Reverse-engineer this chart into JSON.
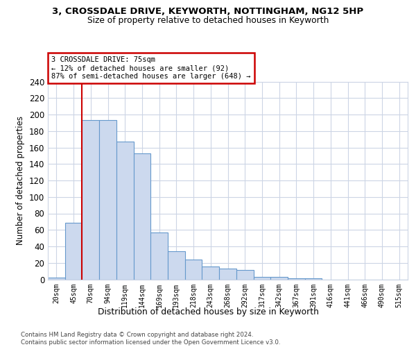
{
  "title1": "3, CROSSDALE DRIVE, KEYWORTH, NOTTINGHAM, NG12 5HP",
  "title2": "Size of property relative to detached houses in Keyworth",
  "xlabel": "Distribution of detached houses by size in Keyworth",
  "ylabel": "Number of detached properties",
  "bar_labels": [
    "20sqm",
    "45sqm",
    "70sqm",
    "94sqm",
    "119sqm",
    "144sqm",
    "169sqm",
    "193sqm",
    "218sqm",
    "243sqm",
    "268sqm",
    "292sqm",
    "317sqm",
    "342sqm",
    "367sqm",
    "391sqm",
    "416sqm",
    "441sqm",
    "466sqm",
    "490sqm",
    "515sqm"
  ],
  "bar_heights": [
    2,
    69,
    193,
    193,
    167,
    153,
    57,
    34,
    24,
    16,
    13,
    11,
    3,
    3,
    1,
    1,
    0,
    0,
    0,
    0,
    0
  ],
  "bar_color": "#ccd9ee",
  "bar_edge_color": "#6699cc",
  "red_line_x": 1.5,
  "annotation_text": "3 CROSSDALE DRIVE: 75sqm\n← 12% of detached houses are smaller (92)\n87% of semi-detached houses are larger (648) →",
  "annotation_box_facecolor": "#ffffff",
  "annotation_border_color": "#cc0000",
  "footer_line1": "Contains HM Land Registry data © Crown copyright and database right 2024.",
  "footer_line2": "Contains public sector information licensed under the Open Government Licence v3.0.",
  "bg_color": "#ffffff",
  "grid_color": "#ccd5e5",
  "ylim": [
    0,
    240
  ],
  "yticks": [
    0,
    20,
    40,
    60,
    80,
    100,
    120,
    140,
    160,
    180,
    200,
    220,
    240
  ]
}
